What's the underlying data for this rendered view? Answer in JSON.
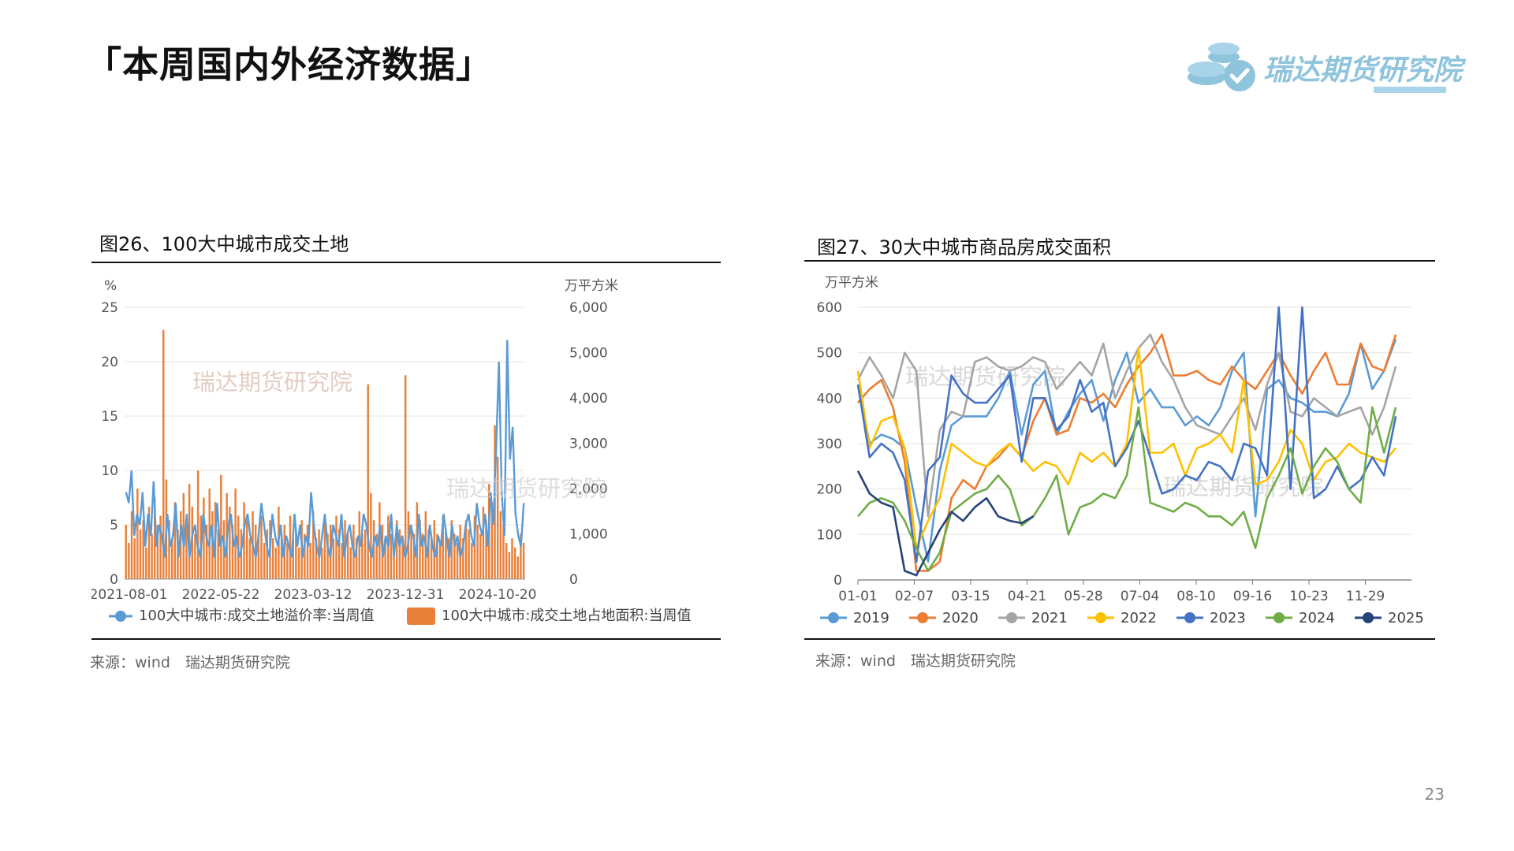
{
  "page": {
    "title": "「本周国内外经济数据」",
    "page_number": "23"
  },
  "logo": {
    "text": "瑞达期货研究院"
  },
  "colors": {
    "bar": "#e8803a",
    "line_blue": "#5b9bd5",
    "grid": "#e6e6e6",
    "axis": "#333333",
    "series": [
      "#5b9bd5",
      "#ed7d31",
      "#a5a5a5",
      "#ffc000",
      "#4472c4",
      "#70ad47",
      "#264478"
    ]
  },
  "figures": {
    "left": {
      "title": "图26、100大中城市成交土地",
      "source": "来源：wind　瑞达期货研究院"
    },
    "right": {
      "title": "图27、30大中城市商品房成交面积",
      "source": "来源：wind　瑞达期货研究院"
    }
  },
  "chart_data": [
    {
      "type": "bar",
      "title": "图26、100大中城市成交土地",
      "y_left_unit": "%",
      "y_right_unit": "万平方米",
      "y_left_ticks": [
        "0",
        "5",
        "10",
        "15",
        "20",
        "25"
      ],
      "y_right_ticks": [
        "0",
        "1,000",
        "2,000",
        "3,000",
        "4,000",
        "5,000",
        "6,000"
      ],
      "ylim_left": [
        0,
        25
      ],
      "ylim_right": [
        0,
        6000
      ],
      "x_tick_labels": [
        "2021-08-01",
        "2022-05-22",
        "2023-03-12",
        "2023-12-31",
        "2024-10-20"
      ],
      "watermark": "瑞达期货研究院",
      "series": [
        {
          "name": "100大中城市:成交土地溢价率:当周值",
          "type": "line",
          "axis": "left",
          "values": [
            8,
            7,
            10,
            4,
            6,
            5,
            8,
            3,
            6,
            4,
            9,
            3,
            5,
            4,
            2,
            6,
            3,
            4,
            7,
            2,
            5,
            3,
            6,
            2,
            4,
            5,
            3,
            2,
            6,
            4,
            3,
            5,
            2,
            7,
            3,
            4,
            2,
            5,
            6,
            3,
            4,
            2,
            3,
            5,
            6,
            4,
            3,
            2,
            4,
            7,
            5,
            3,
            2,
            6,
            4,
            3,
            5,
            2,
            4,
            3,
            2,
            6,
            3,
            5,
            2,
            4,
            3,
            8,
            5,
            3,
            2,
            4,
            6,
            3,
            2,
            5,
            4,
            3,
            6,
            2,
            4,
            5,
            3,
            2,
            4,
            3,
            6,
            5,
            3,
            2,
            4,
            3,
            5,
            2,
            4,
            3,
            6,
            2,
            5,
            3,
            4,
            2,
            3,
            5,
            4,
            2,
            6,
            3,
            4,
            2,
            5,
            3,
            2,
            4,
            3,
            6,
            4,
            2,
            5,
            3,
            4,
            2,
            3,
            5,
            6,
            4,
            3,
            7,
            5,
            4,
            6,
            3,
            8,
            5,
            12,
            20,
            8,
            4,
            22,
            11,
            14,
            6,
            4,
            3,
            7
          ]
        },
        {
          "name": "100大中城市:成交土地占地面积:当周值",
          "type": "bar",
          "axis": "right",
          "values": [
            1200,
            800,
            1500,
            900,
            2000,
            1100,
            1300,
            700,
            1600,
            1000,
            1800,
            1200,
            1400,
            5500,
            2200,
            1300,
            900,
            1700,
            1100,
            1500,
            1900,
            1300,
            2100,
            1600,
            1000,
            2400,
            1400,
            1800,
            1200,
            2000,
            1500,
            1700,
            1100,
            2300,
            1300,
            1900,
            1600,
            1200,
            2000,
            1400,
            1100,
            1700,
            1300,
            900,
            1500,
            1200,
            1000,
            1400,
            800,
            1100,
            1300,
            900,
            700,
            1600,
            1000,
            1200,
            800,
            1400,
            900,
            1100,
            700,
            1300,
            1000,
            1200,
            800,
            1500,
            900,
            1100,
            700,
            1300,
            1000,
            1200,
            900,
            1400,
            1100,
            800,
            1300,
            1000,
            700,
            1200,
            900,
            1500,
            1000,
            1100,
            4300,
            1900,
            1300,
            1000,
            1700,
            1200,
            900,
            1400,
            1000,
            800,
            1300,
            1100,
            900,
            4500,
            1500,
            1200,
            1000,
            1700,
            1300,
            1000,
            1500,
            1100,
            900,
            1300,
            1000,
            800,
            1400,
            1100,
            900,
            1300,
            1000,
            800,
            1200,
            900,
            1300,
            1100,
            800,
            1400,
            1200,
            1000,
            1600,
            1300,
            2100,
            1700,
            3400,
            2700,
            1500,
            1200,
            800,
            600,
            900,
            700,
            500,
            1000,
            800
          ]
        }
      ]
    },
    {
      "type": "line",
      "title": "图27、30大中城市商品房成交面积",
      "y_unit": "万平方米",
      "ylim": [
        0,
        600
      ],
      "y_ticks": [
        "0",
        "100",
        "200",
        "300",
        "400",
        "500",
        "600"
      ],
      "x_tick_labels": [
        "01-01",
        "02-07",
        "03-15",
        "04-21",
        "05-28",
        "07-04",
        "08-10",
        "09-16",
        "10-23",
        "11-29"
      ],
      "watermark": "瑞达期货研究院",
      "series": [
        {
          "name": "2019",
          "values": [
            430,
            300,
            320,
            310,
            290,
            160,
            40,
            240,
            340,
            360,
            360,
            360,
            400,
            460,
            320,
            430,
            460,
            320,
            370,
            410,
            440,
            350,
            440,
            500,
            390,
            420,
            380,
            380,
            340,
            360,
            340,
            380,
            460,
            500,
            140,
            420,
            440,
            400,
            390,
            370,
            370,
            360,
            410,
            520,
            420,
            460,
            530
          ]
        },
        {
          "name": "2020",
          "values": [
            390,
            420,
            440,
            380,
            260,
            20,
            20,
            40,
            180,
            220,
            200,
            250,
            270,
            300,
            270,
            350,
            400,
            320,
            330,
            400,
            390,
            410,
            380,
            430,
            470,
            500,
            540,
            450,
            450,
            460,
            440,
            430,
            470,
            440,
            420,
            460,
            500,
            450,
            410,
            460,
            500,
            430,
            430,
            520,
            470,
            460,
            540
          ]
        },
        {
          "name": "2021",
          "values": [
            440,
            490,
            450,
            400,
            500,
            460,
            140,
            330,
            370,
            360,
            480,
            490,
            470,
            460,
            470,
            490,
            480,
            420,
            450,
            480,
            450,
            520,
            400,
            460,
            510,
            540,
            480,
            440,
            380,
            340,
            330,
            320,
            360,
            400,
            330,
            430,
            500,
            370,
            360,
            400,
            380,
            360,
            370,
            380,
            320,
            380,
            470
          ]
        },
        {
          "name": "2022",
          "values": [
            460,
            290,
            350,
            360,
            290,
            70,
            130,
            180,
            300,
            280,
            260,
            250,
            280,
            300,
            270,
            240,
            260,
            250,
            210,
            280,
            260,
            280,
            250,
            300,
            510,
            280,
            280,
            300,
            230,
            290,
            300,
            320,
            280,
            440,
            210,
            220,
            260,
            330,
            300,
            220,
            260,
            270,
            300,
            280,
            270,
            260,
            290
          ]
        },
        {
          "name": "2023",
          "values": [
            430,
            270,
            300,
            280,
            220,
            40,
            240,
            270,
            450,
            410,
            390,
            390,
            420,
            450,
            260,
            400,
            400,
            330,
            360,
            440,
            370,
            390,
            250,
            290,
            350,
            270,
            190,
            200,
            230,
            220,
            260,
            250,
            220,
            300,
            290,
            230,
            600,
            200,
            600,
            180,
            200,
            250,
            200,
            220,
            270,
            230,
            360
          ]
        },
        {
          "name": "2024",
          "values": [
            140,
            170,
            180,
            170,
            130,
            70,
            20,
            60,
            150,
            170,
            190,
            200,
            230,
            200,
            120,
            140,
            180,
            230,
            100,
            160,
            170,
            190,
            180,
            230,
            380,
            170,
            160,
            150,
            170,
            160,
            140,
            140,
            120,
            150,
            70,
            180,
            230,
            290,
            190,
            250,
            290,
            260,
            200,
            170,
            380,
            280,
            380
          ]
        },
        {
          "name": "2025",
          "values": [
            240,
            190,
            170,
            160,
            20,
            10,
            60,
            110,
            150,
            130,
            160,
            180,
            140,
            130,
            125,
            140
          ]
        }
      ]
    }
  ]
}
